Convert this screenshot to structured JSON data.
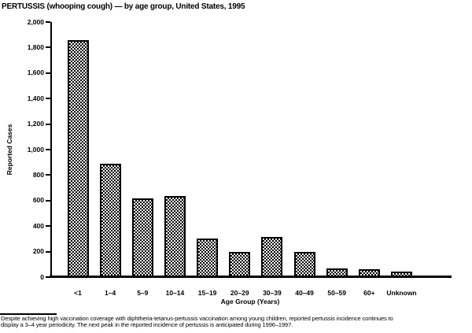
{
  "title": "PERTUSSIS (whooping cough) — by age group, United States, 1995",
  "chart_data": {
    "type": "bar",
    "title": "PERTUSSIS (whooping cough) — by age group, United States, 1995",
    "categories": [
      "<1",
      "1–4",
      "5–9",
      "10–14",
      "15–19",
      "20–29",
      "30–39",
      "40–49",
      "50–59",
      "60+",
      "Unknown"
    ],
    "values": [
      1860,
      890,
      620,
      635,
      305,
      195,
      315,
      200,
      70,
      60,
      45
    ],
    "xlabel": "Age Group (Years)",
    "ylabel": "Reported Cases",
    "ylim": [
      0,
      2000
    ],
    "ytick_step": 200,
    "ytick_labels": [
      "0",
      "200",
      "400",
      "600",
      "800",
      "1,000",
      "1,200",
      "1,400",
      "1,600",
      "1,800",
      "2,000"
    ],
    "grid": false,
    "legend": "none",
    "bar_fill": "black-stipple-checker",
    "bar_outline_color": "#000000",
    "background_color": "#ffffff"
  },
  "footnote": {
    "lines": [
      "Despite achieving high vaccination coverage with diphtheria-tetanus-pertussis vaccination among young children, reported pertussis incidence continues to",
      "display a 3–4 year periodicity. The next peak in the reported incidence of pertussis is anticipated during 1996–1997."
    ]
  }
}
